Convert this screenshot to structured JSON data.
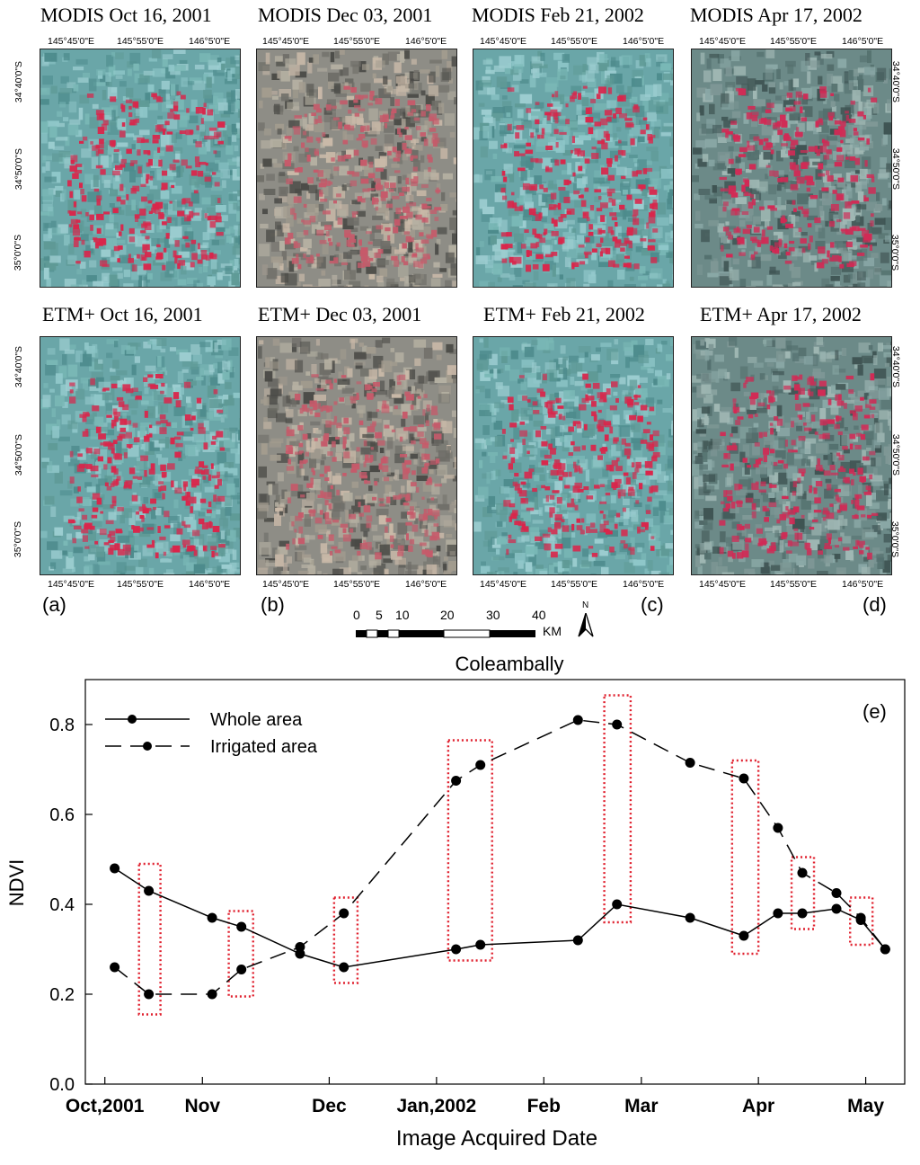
{
  "figure": {
    "modis_titles": [
      "MODIS Oct 16, 2001",
      "MODIS Dec 03, 2001",
      "MODIS Feb 21, 2002",
      "MODIS Apr 17, 2002"
    ],
    "etm_titles": [
      "ETM+ Oct 16, 2001",
      "ETM+ Dec 03, 2001",
      "ETM+ Feb 21, 2002",
      "ETM+ Apr 17, 2002"
    ],
    "panel_letters": [
      "(a)",
      "(b)",
      "(c)",
      "(d)",
      "(e)"
    ],
    "lon_ticks": [
      "145°45'0\"E",
      "145°55'0\"E",
      "146°5'0\"E"
    ],
    "lat_ticks_top": [
      "34°40'0\"S",
      "34°50'0\"S",
      "35°0'0\"S"
    ],
    "lat_ticks_bottom": [
      "34°40'0\"S",
      "34°50'0\"S",
      "35°0'0\"S"
    ],
    "scale_bar": {
      "labels": [
        "0",
        "5",
        "10",
        "20",
        "30",
        "40"
      ],
      "unit": "KM",
      "north": "N"
    },
    "palettes": {
      "cyan": {
        "bg": "#6aa6a8",
        "tones": [
          "#8fc7c9",
          "#4d8b8c",
          "#7ab8b6",
          "#5f9a96",
          "#9ccdd0"
        ],
        "red": "#d9264b"
      },
      "gray": {
        "bg": "#8e8d86",
        "tones": [
          "#b5b0a2",
          "#6f6e68",
          "#c9b9a8",
          "#4a4a46",
          "#a39c8f"
        ],
        "red": "#c65a6a"
      },
      "mixed": {
        "bg": "#6c8a88",
        "tones": [
          "#8aa8a6",
          "#54706e",
          "#a0b8b4",
          "#3f5453",
          "#7f9896"
        ],
        "red": "#d12a55"
      }
    }
  },
  "chart_data": {
    "type": "line",
    "title": "Coleambally",
    "xlabel": "Image Acquired Date",
    "ylabel": "NDVI",
    "ylim": [
      0.0,
      0.8
    ],
    "y_ticks": [
      "0.0",
      "0.2",
      "0.4",
      "0.6",
      "0.8"
    ],
    "x_ticks": [
      {
        "label": "Oct,2001",
        "t": 0.1
      },
      {
        "label": "Nov",
        "t": 1.1
      },
      {
        "label": "Dec",
        "t": 2.4
      },
      {
        "label": "Jan,2002",
        "t": 3.5
      },
      {
        "label": "Feb",
        "t": 4.6
      },
      {
        "label": "Mar",
        "t": 5.6
      },
      {
        "label": "Apr",
        "t": 6.8
      },
      {
        "label": "May",
        "t": 7.9
      }
    ],
    "xlim": [
      -0.1,
      8.3
    ],
    "legend": "top-left",
    "panel_label": "(e)",
    "series": [
      {
        "name": "Whole area",
        "style": "solid",
        "x": [
          0.2,
          0.55,
          1.2,
          1.5,
          2.1,
          2.55,
          3.7,
          3.95,
          4.95,
          5.35,
          6.1,
          6.65,
          7.0,
          7.25,
          7.6,
          7.85,
          8.1
        ],
        "y": [
          0.48,
          0.43,
          0.37,
          0.35,
          0.29,
          0.26,
          0.3,
          0.31,
          0.32,
          0.4,
          0.37,
          0.33,
          0.38,
          0.38,
          0.39,
          0.365,
          0.3
        ]
      },
      {
        "name": "Irrigated area",
        "style": "dashed",
        "x": [
          0.2,
          0.55,
          1.2,
          1.5,
          2.1,
          2.55,
          3.7,
          3.95,
          4.95,
          5.35,
          6.1,
          6.65,
          7.0,
          7.25,
          7.6,
          7.85,
          8.1
        ],
        "y": [
          0.26,
          0.2,
          0.2,
          0.255,
          0.305,
          0.38,
          0.675,
          0.71,
          0.81,
          0.8,
          0.715,
          0.68,
          0.57,
          0.47,
          0.425,
          0.37,
          0.3
        ]
      }
    ],
    "highlight_boxes": [
      {
        "x0": 0.45,
        "x1": 0.67,
        "y0": 0.155,
        "y1": 0.49
      },
      {
        "x0": 1.37,
        "x1": 1.62,
        "y0": 0.195,
        "y1": 0.385
      },
      {
        "x0": 2.45,
        "x1": 2.69,
        "y0": 0.225,
        "y1": 0.415
      },
      {
        "x0": 3.62,
        "x1": 4.07,
        "y0": 0.275,
        "y1": 0.765
      },
      {
        "x0": 5.22,
        "x1": 5.49,
        "y0": 0.36,
        "y1": 0.865
      },
      {
        "x0": 6.53,
        "x1": 6.8,
        "y0": 0.29,
        "y1": 0.72
      },
      {
        "x0": 7.14,
        "x1": 7.37,
        "y0": 0.345,
        "y1": 0.505
      },
      {
        "x0": 7.74,
        "x1": 7.97,
        "y0": 0.31,
        "y1": 0.415
      }
    ],
    "highlight_color": "#e0202e"
  }
}
